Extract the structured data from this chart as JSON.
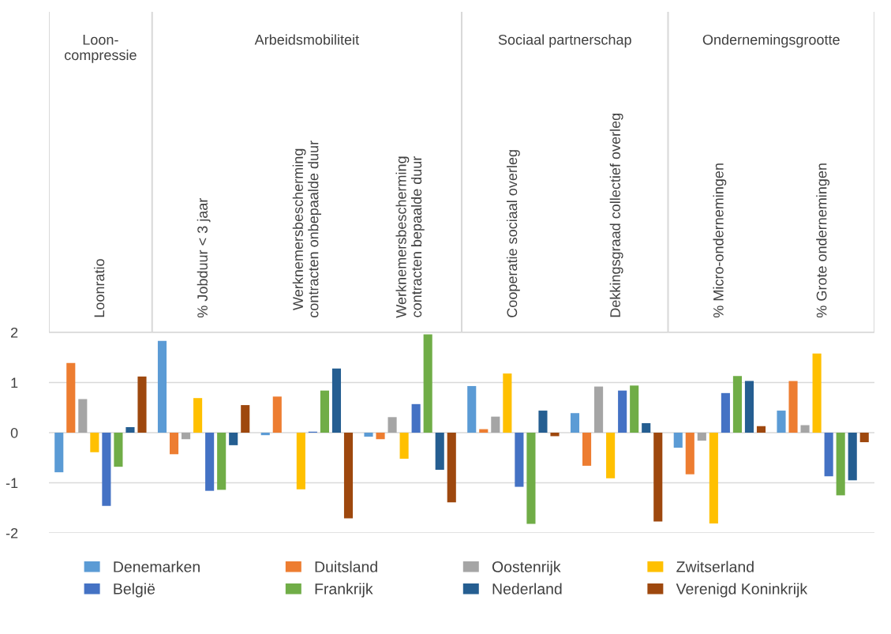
{
  "chart_data": {
    "type": "bar",
    "categories": [
      "Loonratio",
      "% Jobduur < 3 jaar",
      "Werknemersbescherming\ncontracten onbepaalde duur",
      "Werknemersbescherming\ncontracten bepaalde duur",
      "Cooperatie sociaal overleg",
      "Dekkingsgraad collectief overleg",
      "% Micro-ondernemingen",
      "% Grote ondernemingen"
    ],
    "annotations": [
      "Loon-\ncompressie",
      "Arbeidsmobiliteit",
      "Sociaal partnerschap",
      "Ondernemingsgrootte"
    ],
    "series": [
      {
        "name": "Denemarken",
        "color": "#5b9bd5",
        "values": [
          -0.79,
          1.83,
          -0.05,
          -0.08,
          0.93,
          0.39,
          -0.3,
          0.44
        ]
      },
      {
        "name": "Duitsland",
        "color": "#ed7d31",
        "values": [
          1.39,
          -0.43,
          0.72,
          -0.13,
          0.07,
          -0.66,
          -0.83,
          1.03
        ]
      },
      {
        "name": "Oostenrijk",
        "color": "#a5a5a5",
        "values": [
          0.67,
          -0.13,
          null,
          0.31,
          0.32,
          0.92,
          -0.16,
          0.15
        ]
      },
      {
        "name": "Zwitserland",
        "color": "#ffc000",
        "values": [
          -0.39,
          0.69,
          -1.13,
          -0.52,
          1.18,
          -0.91,
          -1.81,
          1.58
        ]
      },
      {
        "name": "België",
        "color": "#4472c4",
        "values": [
          -1.46,
          -1.16,
          0.02,
          0.57,
          -1.08,
          0.84,
          0.79,
          -0.87
        ]
      },
      {
        "name": "Frankrijk",
        "color": "#70ad47",
        "values": [
          -0.68,
          -1.14,
          0.84,
          1.96,
          -1.82,
          0.94,
          1.13,
          -1.25
        ]
      },
      {
        "name": "Nederland",
        "color": "#255e91",
        "values": [
          0.11,
          -0.25,
          1.28,
          -0.74,
          0.44,
          0.19,
          1.03,
          -0.95
        ]
      },
      {
        "name": "Verenigd Koninkrijk",
        "color": "#9e480e",
        "values": [
          1.12,
          0.55,
          -1.71,
          -1.39,
          -0.07,
          -1.77,
          0.13,
          -0.19
        ]
      }
    ],
    "ylim": [
      -2,
      2
    ],
    "yticks": [
      -2,
      -1,
      0,
      1,
      2
    ],
    "grid": "y",
    "legend": "bottom"
  }
}
